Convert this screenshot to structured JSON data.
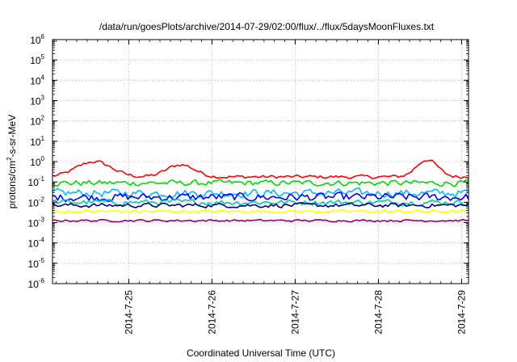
{
  "chart_data": {
    "type": "line",
    "title": "/data/run/goesPlots/archive/2014-07-29/02:00/flux/../flux/5daysMoonFluxes.txt",
    "xlabel": "Coordinated Universal Time (UTC)",
    "ylabel": "protons/cm²-s-sr-MeV",
    "ylabel_parts": {
      "pre": "protons/cm",
      "sup": "2",
      "post": "-s-sr-MeV"
    },
    "y_scale": "log",
    "ylim_exponents": [
      -6,
      6
    ],
    "y_tick_base": "10",
    "y_tick_exponents": [
      "-6",
      "-5",
      "-4",
      "-3",
      "-2",
      "-1",
      "0",
      "1",
      "2",
      "3",
      "4",
      "5",
      "6"
    ],
    "xlim": [
      "2014-07-24 02:00",
      "2014-07-29 02:00"
    ],
    "x_ticks": [
      {
        "label": "2014-7-25",
        "date": "2014-07-25 00:00"
      },
      {
        "label": "2014-7-26",
        "date": "2014-07-26 00:00"
      },
      {
        "label": "2014-7-27",
        "date": "2014-07-27 00:00"
      },
      {
        "label": "2014-7-28",
        "date": "2014-07-28 00:00"
      },
      {
        "label": "2014-7-29",
        "date": "2014-07-29 00:00"
      }
    ],
    "grid": true,
    "legend": "none",
    "series": [
      {
        "color": "#ff0000",
        "base_log": -0.75,
        "noise": 0.12,
        "bumps": [
          {
            "center": "2014-07-24 14:00",
            "width_h": 5,
            "amp": 0.75
          },
          {
            "center": "2014-07-25 15:00",
            "width_h": 4,
            "amp": 0.6
          },
          {
            "center": "2014-07-28 14:00",
            "width_h": 3,
            "amp": 0.85
          }
        ]
      },
      {
        "color": "#00dd00",
        "base_log": -1.05,
        "noise": 0.2,
        "bumps": []
      },
      {
        "color": "#00bbff",
        "base_log": -1.55,
        "noise": 0.28,
        "bumps": []
      },
      {
        "color": "#0000ff",
        "base_log": -1.75,
        "noise": 0.28,
        "bumps": []
      },
      {
        "color": "#00ccaa",
        "base_log": -2.0,
        "noise": 0.2,
        "bumps": []
      },
      {
        "color": "#000080",
        "base_log": -2.15,
        "noise": 0.15,
        "bumps": []
      },
      {
        "color": "#ffff00",
        "base_log": -2.45,
        "noise": 0.1,
        "bumps": []
      },
      {
        "color": "#880066",
        "base_log": -2.9,
        "noise": 0.07,
        "bumps": []
      }
    ]
  }
}
